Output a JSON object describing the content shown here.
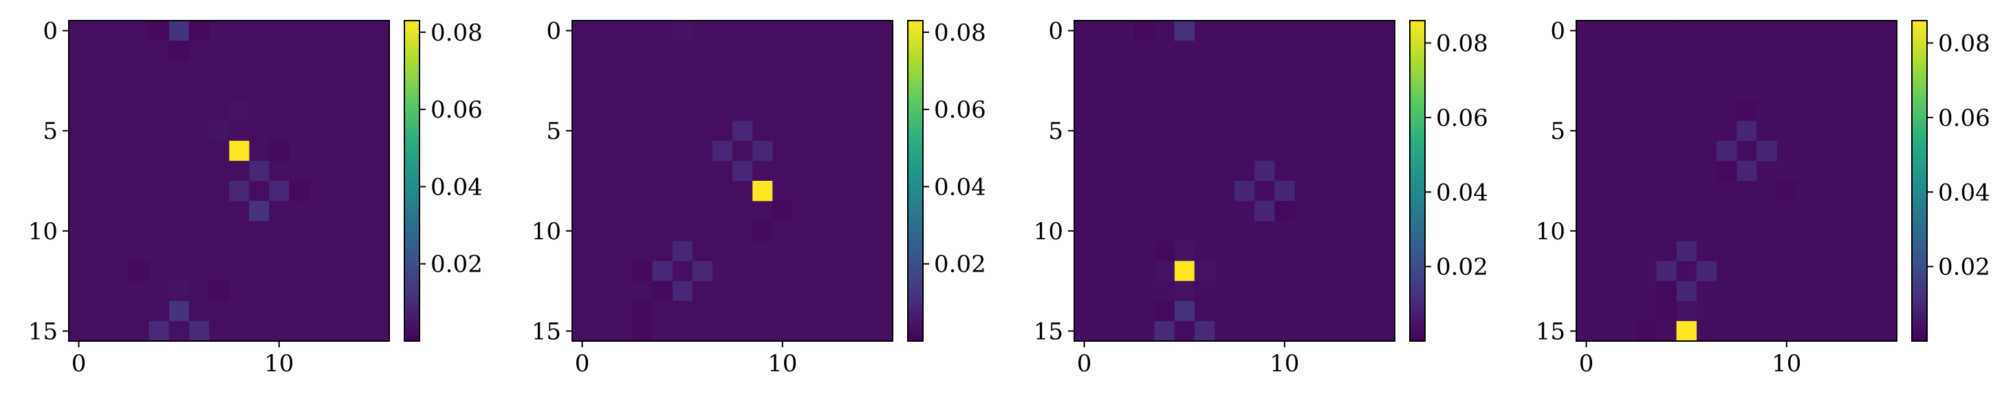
{
  "chart_data": [
    {
      "type": "heatmap",
      "title": "",
      "xlabel": "",
      "ylabel": "",
      "grid_size": 16,
      "x_ticks": [
        0,
        10
      ],
      "y_ticks": [
        0,
        5,
        10,
        15
      ],
      "colorbar": {
        "ticks": [
          "0.02",
          "0.04",
          "0.06",
          "0.08"
        ],
        "min": 0.0,
        "max": 0.083
      },
      "colormap": "viridis",
      "cells": [
        {
          "row": 0,
          "col": 5,
          "value": 0.012
        },
        {
          "row": 0,
          "col": 4,
          "value": 0.002
        },
        {
          "row": 0,
          "col": 6,
          "value": 0.002
        },
        {
          "row": 1,
          "col": 5,
          "value": 0.002
        },
        {
          "row": 4,
          "col": 8,
          "value": 0.004
        },
        {
          "row": 5,
          "col": 7,
          "value": 0.004
        },
        {
          "row": 5,
          "col": 9,
          "value": 0.003
        },
        {
          "row": 6,
          "col": 8,
          "value": 0.083
        },
        {
          "row": 6,
          "col": 7,
          "value": 0.003
        },
        {
          "row": 6,
          "col": 10,
          "value": 0.002
        },
        {
          "row": 7,
          "col": 9,
          "value": 0.009
        },
        {
          "row": 7,
          "col": 8,
          "value": 0.003
        },
        {
          "row": 8,
          "col": 8,
          "value": 0.009
        },
        {
          "row": 8,
          "col": 10,
          "value": 0.009
        },
        {
          "row": 8,
          "col": 11,
          "value": 0.002
        },
        {
          "row": 9,
          "col": 9,
          "value": 0.012
        },
        {
          "row": 9,
          "col": 10,
          "value": 0.003
        },
        {
          "row": 10,
          "col": 4,
          "value": 0.003
        },
        {
          "row": 10,
          "col": 5,
          "value": 0.003
        },
        {
          "row": 11,
          "col": 4,
          "value": 0.003
        },
        {
          "row": 11,
          "col": 6,
          "value": 0.003
        },
        {
          "row": 12,
          "col": 5,
          "value": 0.003
        },
        {
          "row": 12,
          "col": 3,
          "value": 0.002
        },
        {
          "row": 13,
          "col": 5,
          "value": 0.004
        },
        {
          "row": 13,
          "col": 7,
          "value": 0.002
        },
        {
          "row": 14,
          "col": 5,
          "value": 0.012
        },
        {
          "row": 14,
          "col": 4,
          "value": 0.003
        },
        {
          "row": 14,
          "col": 6,
          "value": 0.003
        },
        {
          "row": 15,
          "col": 4,
          "value": 0.01
        },
        {
          "row": 15,
          "col": 6,
          "value": 0.01
        },
        {
          "row": 15,
          "col": 5,
          "value": 0.004
        }
      ]
    },
    {
      "type": "heatmap",
      "title": "",
      "xlabel": "",
      "ylabel": "",
      "grid_size": 16,
      "x_ticks": [
        0,
        10
      ],
      "y_ticks": [
        0,
        5,
        10,
        15
      ],
      "colorbar": {
        "ticks": [
          "0.02",
          "0.04",
          "0.06",
          "0.08"
        ],
        "min": 0.0,
        "max": 0.083
      },
      "colormap": "viridis",
      "cells": [
        {
          "row": 0,
          "col": 5,
          "value": 0.004
        },
        {
          "row": 0,
          "col": 6,
          "value": 0.003
        },
        {
          "row": 1,
          "col": 6,
          "value": 0.003
        },
        {
          "row": 5,
          "col": 8,
          "value": 0.009
        },
        {
          "row": 5,
          "col": 9,
          "value": 0.003
        },
        {
          "row": 6,
          "col": 7,
          "value": 0.009
        },
        {
          "row": 6,
          "col": 9,
          "value": 0.009
        },
        {
          "row": 7,
          "col": 8,
          "value": 0.009
        },
        {
          "row": 7,
          "col": 9,
          "value": 0.003
        },
        {
          "row": 8,
          "col": 9,
          "value": 0.083
        },
        {
          "row": 8,
          "col": 7,
          "value": 0.003
        },
        {
          "row": 8,
          "col": 10,
          "value": 0.003
        },
        {
          "row": 9,
          "col": 8,
          "value": 0.003
        },
        {
          "row": 9,
          "col": 10,
          "value": 0.002
        },
        {
          "row": 10,
          "col": 9,
          "value": 0.002
        },
        {
          "row": 11,
          "col": 5,
          "value": 0.009
        },
        {
          "row": 11,
          "col": 4,
          "value": 0.003
        },
        {
          "row": 12,
          "col": 4,
          "value": 0.009
        },
        {
          "row": 12,
          "col": 6,
          "value": 0.009
        },
        {
          "row": 12,
          "col": 3,
          "value": 0.002
        },
        {
          "row": 13,
          "col": 5,
          "value": 0.009
        },
        {
          "row": 13,
          "col": 4,
          "value": 0.002
        },
        {
          "row": 14,
          "col": 5,
          "value": 0.003
        },
        {
          "row": 14,
          "col": 3,
          "value": 0.002
        },
        {
          "row": 15,
          "col": 3,
          "value": 0.002
        }
      ]
    },
    {
      "type": "heatmap",
      "title": "",
      "xlabel": "",
      "ylabel": "",
      "grid_size": 16,
      "x_ticks": [
        0,
        10
      ],
      "y_ticks": [
        0,
        5,
        10,
        15
      ],
      "colorbar": {
        "ticks": [
          "0.02",
          "0.04",
          "0.06",
          "0.08"
        ],
        "min": 0.0,
        "max": 0.086
      },
      "colormap": "viridis",
      "cells": [
        {
          "row": 0,
          "col": 5,
          "value": 0.012
        },
        {
          "row": 0,
          "col": 3,
          "value": 0.002
        },
        {
          "row": 1,
          "col": 5,
          "value": 0.003
        },
        {
          "row": 4,
          "col": 8,
          "value": 0.003
        },
        {
          "row": 5,
          "col": 8,
          "value": 0.003
        },
        {
          "row": 6,
          "col": 7,
          "value": 0.003
        },
        {
          "row": 6,
          "col": 9,
          "value": 0.003
        },
        {
          "row": 7,
          "col": 9,
          "value": 0.009
        },
        {
          "row": 8,
          "col": 8,
          "value": 0.009
        },
        {
          "row": 8,
          "col": 10,
          "value": 0.009
        },
        {
          "row": 9,
          "col": 9,
          "value": 0.009
        },
        {
          "row": 9,
          "col": 10,
          "value": 0.002
        },
        {
          "row": 10,
          "col": 5,
          "value": 0.003
        },
        {
          "row": 11,
          "col": 5,
          "value": 0.004
        },
        {
          "row": 11,
          "col": 4,
          "value": 0.002
        },
        {
          "row": 12,
          "col": 5,
          "value": 0.086
        },
        {
          "row": 12,
          "col": 4,
          "value": 0.004
        },
        {
          "row": 12,
          "col": 6,
          "value": 0.004
        },
        {
          "row": 13,
          "col": 5,
          "value": 0.004
        },
        {
          "row": 14,
          "col": 5,
          "value": 0.012
        },
        {
          "row": 14,
          "col": 4,
          "value": 0.002
        },
        {
          "row": 15,
          "col": 4,
          "value": 0.01
        },
        {
          "row": 15,
          "col": 6,
          "value": 0.01
        },
        {
          "row": 15,
          "col": 5,
          "value": 0.003
        }
      ]
    },
    {
      "type": "heatmap",
      "title": "",
      "xlabel": "",
      "ylabel": "",
      "grid_size": 16,
      "x_ticks": [
        0,
        10
      ],
      "y_ticks": [
        0,
        5,
        10,
        15
      ],
      "colorbar": {
        "ticks": [
          "0.02",
          "0.04",
          "0.06",
          "0.08"
        ],
        "min": 0.0,
        "max": 0.086
      },
      "colormap": "viridis",
      "cells": [
        {
          "row": 0,
          "col": 5,
          "value": 0.003
        },
        {
          "row": 1,
          "col": 5,
          "value": 0.003
        },
        {
          "row": 4,
          "col": 8,
          "value": 0.002
        },
        {
          "row": 5,
          "col": 8,
          "value": 0.009
        },
        {
          "row": 5,
          "col": 7,
          "value": 0.003
        },
        {
          "row": 5,
          "col": 9,
          "value": 0.003
        },
        {
          "row": 6,
          "col": 7,
          "value": 0.009
        },
        {
          "row": 6,
          "col": 9,
          "value": 0.009
        },
        {
          "row": 7,
          "col": 8,
          "value": 0.009
        },
        {
          "row": 7,
          "col": 7,
          "value": 0.002
        },
        {
          "row": 8,
          "col": 9,
          "value": 0.003
        },
        {
          "row": 8,
          "col": 10,
          "value": 0.002
        },
        {
          "row": 11,
          "col": 5,
          "value": 0.009
        },
        {
          "row": 11,
          "col": 4,
          "value": 0.003
        },
        {
          "row": 12,
          "col": 4,
          "value": 0.009
        },
        {
          "row": 12,
          "col": 6,
          "value": 0.009
        },
        {
          "row": 13,
          "col": 5,
          "value": 0.009
        },
        {
          "row": 13,
          "col": 4,
          "value": 0.002
        },
        {
          "row": 14,
          "col": 5,
          "value": 0.004
        },
        {
          "row": 14,
          "col": 4,
          "value": 0.002
        },
        {
          "row": 15,
          "col": 5,
          "value": 0.086
        },
        {
          "row": 15,
          "col": 3,
          "value": 0.002
        }
      ]
    }
  ]
}
